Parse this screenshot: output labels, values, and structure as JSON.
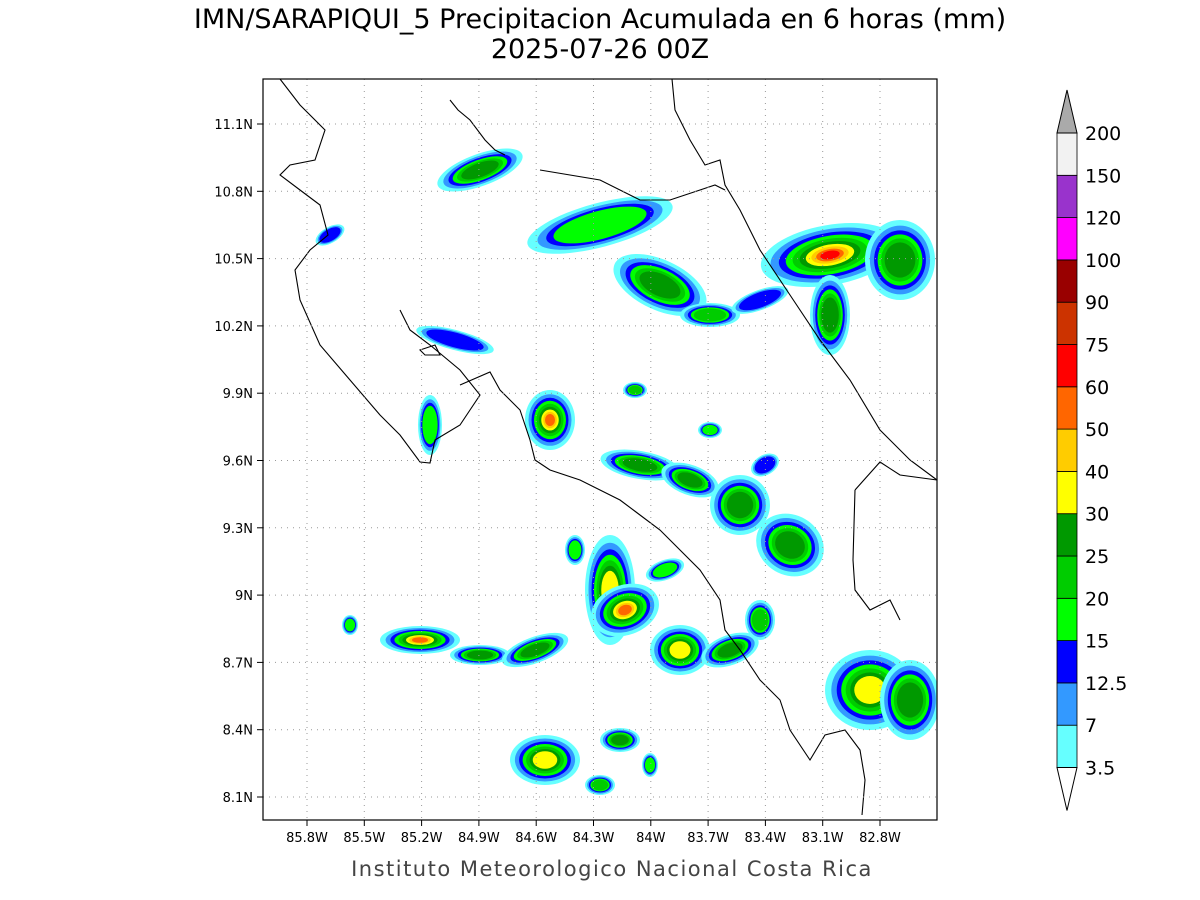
{
  "header": {
    "title": "IMN/SARAPIQUI_5 Precipitacion Acumulada en 6 horas (mm)",
    "subtitle": "2025-07-26 00Z"
  },
  "map": {
    "lon_labels": [
      "85.8W",
      "85.5W",
      "85.2W",
      "84.9W",
      "84.6W",
      "84.3W",
      "84W",
      "83.7W",
      "83.4W",
      "83.1W",
      "82.8W"
    ],
    "lat_labels": [
      "11.1N",
      "10.8N",
      "10.5N",
      "10.2N",
      "9.9N",
      "9.6N",
      "9.3N",
      "9N",
      "8.7N",
      "8.4N",
      "8.1N"
    ]
  },
  "legend": {
    "levels": [
      3.5,
      7,
      12.5,
      15,
      20,
      25,
      30,
      40,
      50,
      60,
      75,
      90,
      100,
      120,
      150,
      200
    ],
    "colors": [
      "#66ffff",
      "#3399ff",
      "#0000ff",
      "#00ff00",
      "#00cc00",
      "#009900",
      "#ffff00",
      "#ffcc00",
      "#ff6600",
      "#ff0000",
      "#cc3300",
      "#990000",
      "#ff00ff",
      "#9933cc",
      "#f2f2f2"
    ],
    "below_color": "#ffffff",
    "above_color": "#aaaaaa"
  },
  "footer": "Instituto Meteorologico Nacional Costa Rica"
}
